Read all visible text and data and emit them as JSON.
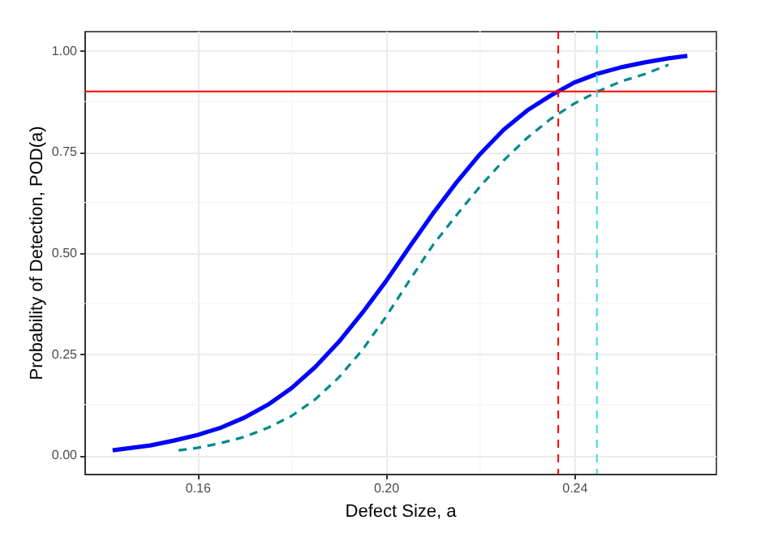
{
  "chart_data": {
    "type": "line",
    "xlabel": "Defect Size, a",
    "ylabel": "Probability of Detection, POD(a)",
    "xlim": [
      0.136,
      0.27
    ],
    "ylim": [
      -0.046,
      1.05
    ],
    "xticks": [
      {
        "value": 0.16,
        "label": "0.16"
      },
      {
        "value": 0.2,
        "label": "0.20"
      },
      {
        "value": 0.24,
        "label": "0.24"
      }
    ],
    "yticks": [
      {
        "value": 0,
        "label": "0.00"
      },
      {
        "value": 0.25,
        "label": "0.25"
      },
      {
        "value": 0.5,
        "label": "0.50"
      },
      {
        "value": 0.75,
        "label": "0.75"
      },
      {
        "value": 1,
        "label": "1.00"
      }
    ],
    "grid": true,
    "marker": "none",
    "series": [
      {
        "color": "#0000ff",
        "line_style": "solid",
        "x": [
          0.142,
          0.15,
          0.155,
          0.16,
          0.165,
          0.17,
          0.175,
          0.18,
          0.185,
          0.19,
          0.195,
          0.2,
          0.205,
          0.21,
          0.215,
          0.22,
          0.225,
          0.23,
          0.235,
          0.24,
          0.245,
          0.25,
          0.255,
          0.26,
          0.264
        ],
        "values": [
          0.012,
          0.024,
          0.036,
          0.05,
          0.068,
          0.093,
          0.125,
          0.166,
          0.218,
          0.28,
          0.352,
          0.43,
          0.515,
          0.598,
          0.675,
          0.745,
          0.805,
          0.853,
          0.89,
          0.922,
          0.944,
          0.96,
          0.972,
          0.982,
          0.988
        ]
      },
      {
        "color": "#008b8b",
        "line_style": "dashed",
        "x": [
          0.156,
          0.16,
          0.165,
          0.17,
          0.175,
          0.18,
          0.185,
          0.19,
          0.195,
          0.2,
          0.205,
          0.21,
          0.215,
          0.22,
          0.225,
          0.23,
          0.235,
          0.24,
          0.245,
          0.25,
          0.255,
          0.26
        ],
        "values": [
          0.012,
          0.018,
          0.03,
          0.045,
          0.068,
          0.097,
          0.138,
          0.192,
          0.26,
          0.342,
          0.432,
          0.52,
          0.594,
          0.665,
          0.729,
          0.785,
          0.832,
          0.87,
          0.9,
          0.925,
          0.943,
          0.966
        ]
      }
    ],
    "ref_lines": [
      {
        "axis": "y",
        "value": 0.9,
        "color": "#ff0000",
        "line_style": "solid"
      },
      {
        "axis": "x",
        "value": 0.2366,
        "color": "#ff0000",
        "line_style": "dashed"
      },
      {
        "axis": "x",
        "value": 0.2448,
        "color": "#3fd8e0",
        "line_style": "dashed"
      }
    ]
  }
}
